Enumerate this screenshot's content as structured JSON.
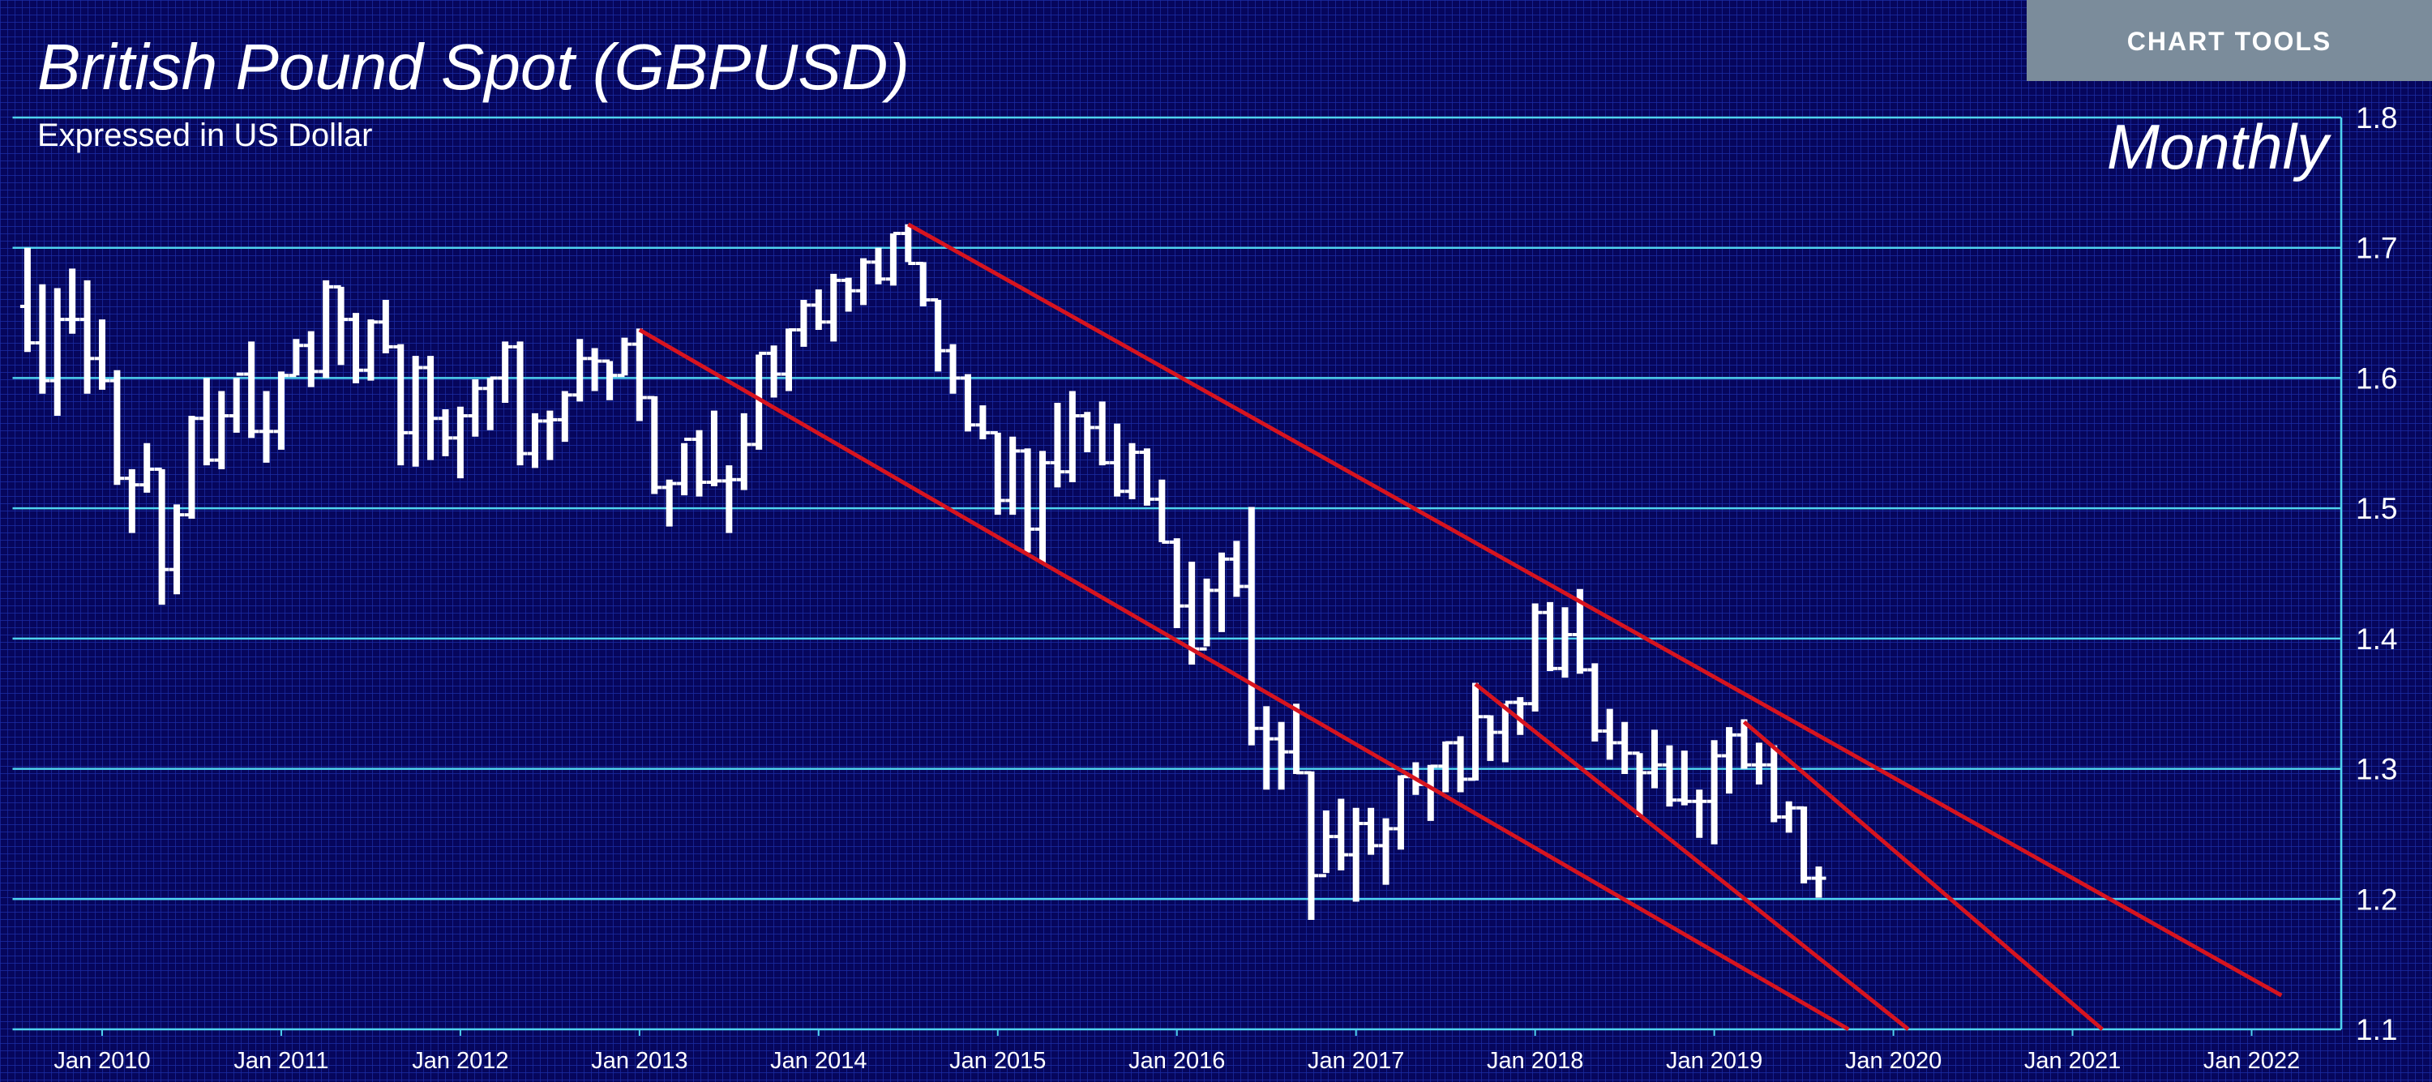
{
  "toolbar": {
    "button": "CHART TOOLS"
  },
  "chart_data": {
    "type": "ohlc",
    "title": "British Pound Spot (GBPUSD)",
    "subtitle": "Expressed in US Dollar",
    "annotation": "Monthly",
    "color": "#ffffff",
    "x": [
      "2009-08",
      "2009-09",
      "2009-10",
      "2009-11",
      "2009-12",
      "2010-01",
      "2010-02",
      "2010-03",
      "2010-04",
      "2010-05",
      "2010-06",
      "2010-07",
      "2010-08",
      "2010-09",
      "2010-10",
      "2010-11",
      "2010-12",
      "2011-01",
      "2011-02",
      "2011-03",
      "2011-04",
      "2011-05",
      "2011-06",
      "2011-07",
      "2011-08",
      "2011-09",
      "2011-10",
      "2011-11",
      "2011-12",
      "2012-01",
      "2012-02",
      "2012-03",
      "2012-04",
      "2012-05",
      "2012-06",
      "2012-07",
      "2012-08",
      "2012-09",
      "2012-10",
      "2012-11",
      "2012-12",
      "2013-01",
      "2013-02",
      "2013-03",
      "2013-04",
      "2013-05",
      "2013-06",
      "2013-07",
      "2013-08",
      "2013-09",
      "2013-10",
      "2013-11",
      "2013-12",
      "2014-01",
      "2014-02",
      "2014-03",
      "2014-04",
      "2014-05",
      "2014-06",
      "2014-07",
      "2014-08",
      "2014-09",
      "2014-10",
      "2014-11",
      "2014-12",
      "2015-01",
      "2015-02",
      "2015-03",
      "2015-04",
      "2015-05",
      "2015-06",
      "2015-07",
      "2015-08",
      "2015-09",
      "2015-10",
      "2015-11",
      "2015-12",
      "2016-01",
      "2016-02",
      "2016-03",
      "2016-04",
      "2016-05",
      "2016-06",
      "2016-07",
      "2016-08",
      "2016-09",
      "2016-10",
      "2016-11",
      "2016-12",
      "2017-01",
      "2017-02",
      "2017-03",
      "2017-04",
      "2017-05",
      "2017-06",
      "2017-07",
      "2017-08",
      "2017-09",
      "2017-10",
      "2017-11",
      "2017-12",
      "2018-01",
      "2018-02",
      "2018-03",
      "2018-04",
      "2018-05",
      "2018-06",
      "2018-07",
      "2018-08",
      "2018-09",
      "2018-10",
      "2018-11",
      "2018-12",
      "2019-01",
      "2019-02",
      "2019-03",
      "2019-04",
      "2019-05",
      "2019-06",
      "2019-07",
      "2019-08"
    ],
    "open": [
      1.655,
      1.627,
      1.598,
      1.645,
      1.645,
      1.615,
      1.598,
      1.523,
      1.518,
      1.53,
      1.453,
      1.495,
      1.569,
      1.537,
      1.571,
      1.603,
      1.559,
      1.559,
      1.602,
      1.625,
      1.605,
      1.67,
      1.645,
      1.606,
      1.643,
      1.624,
      1.558,
      1.608,
      1.569,
      1.554,
      1.571,
      1.592,
      1.6,
      1.624,
      1.542,
      1.567,
      1.568,
      1.587,
      1.615,
      1.613,
      1.602,
      1.626,
      1.585,
      1.516,
      1.519,
      1.553,
      1.52,
      1.521,
      1.522,
      1.549,
      1.619,
      1.603,
      1.637,
      1.656,
      1.643,
      1.675,
      1.667,
      1.689,
      1.676,
      1.711,
      1.688,
      1.66,
      1.621,
      1.6,
      1.564,
      1.558,
      1.506,
      1.544,
      1.484,
      1.535,
      1.528,
      1.571,
      1.562,
      1.535,
      1.513,
      1.543,
      1.507,
      1.474,
      1.425,
      1.392,
      1.437,
      1.461,
      1.44,
      1.331,
      1.323,
      1.313,
      1.297,
      1.218,
      1.248,
      1.234,
      1.258,
      1.241,
      1.254,
      1.294,
      1.288,
      1.302,
      1.32,
      1.292,
      1.34,
      1.328,
      1.351,
      1.35,
      1.42,
      1.377,
      1.403,
      1.376,
      1.329,
      1.32,
      1.312,
      1.297,
      1.303,
      1.276,
      1.275,
      1.275,
      1.31,
      1.326,
      1.303,
      1.303,
      1.263,
      1.27,
      1.216
    ],
    "high": [
      1.7,
      1.672,
      1.669,
      1.684,
      1.675,
      1.645,
      1.606,
      1.53,
      1.55,
      1.53,
      1.503,
      1.571,
      1.6,
      1.59,
      1.6,
      1.628,
      1.59,
      1.605,
      1.63,
      1.636,
      1.675,
      1.67,
      1.65,
      1.645,
      1.66,
      1.626,
      1.617,
      1.617,
      1.576,
      1.578,
      1.599,
      1.6,
      1.628,
      1.628,
      1.573,
      1.575,
      1.59,
      1.63,
      1.623,
      1.613,
      1.631,
      1.638,
      1.586,
      1.522,
      1.55,
      1.56,
      1.575,
      1.533,
      1.573,
      1.618,
      1.625,
      1.638,
      1.66,
      1.668,
      1.68,
      1.677,
      1.692,
      1.7,
      1.711,
      1.718,
      1.689,
      1.66,
      1.626,
      1.603,
      1.579,
      1.558,
      1.555,
      1.546,
      1.544,
      1.581,
      1.59,
      1.574,
      1.582,
      1.565,
      1.55,
      1.546,
      1.522,
      1.477,
      1.459,
      1.446,
      1.466,
      1.475,
      1.501,
      1.348,
      1.336,
      1.35,
      1.298,
      1.268,
      1.277,
      1.27,
      1.27,
      1.262,
      1.295,
      1.305,
      1.303,
      1.321,
      1.325,
      1.366,
      1.341,
      1.35,
      1.355,
      1.427,
      1.428,
      1.424,
      1.438,
      1.381,
      1.346,
      1.336,
      1.312,
      1.33,
      1.318,
      1.314,
      1.284,
      1.322,
      1.332,
      1.338,
      1.32,
      1.318,
      1.275,
      1.271,
      1.225
    ],
    "low": [
      1.62,
      1.588,
      1.571,
      1.634,
      1.588,
      1.591,
      1.518,
      1.481,
      1.512,
      1.426,
      1.434,
      1.492,
      1.533,
      1.53,
      1.558,
      1.554,
      1.535,
      1.545,
      1.602,
      1.593,
      1.6,
      1.61,
      1.596,
      1.598,
      1.619,
      1.533,
      1.532,
      1.537,
      1.54,
      1.523,
      1.555,
      1.56,
      1.581,
      1.533,
      1.531,
      1.537,
      1.551,
      1.582,
      1.59,
      1.583,
      1.602,
      1.567,
      1.511,
      1.486,
      1.51,
      1.509,
      1.517,
      1.481,
      1.514,
      1.545,
      1.585,
      1.59,
      1.624,
      1.637,
      1.628,
      1.651,
      1.656,
      1.672,
      1.671,
      1.689,
      1.655,
      1.605,
      1.588,
      1.559,
      1.553,
      1.495,
      1.495,
      1.466,
      1.458,
      1.516,
      1.52,
      1.543,
      1.533,
      1.509,
      1.507,
      1.502,
      1.474,
      1.408,
      1.38,
      1.394,
      1.405,
      1.432,
      1.318,
      1.284,
      1.284,
      1.296,
      1.184,
      1.22,
      1.222,
      1.198,
      1.234,
      1.211,
      1.238,
      1.28,
      1.26,
      1.282,
      1.282,
      1.291,
      1.306,
      1.305,
      1.326,
      1.344,
      1.375,
      1.37,
      1.373,
      1.321,
      1.307,
      1.296,
      1.263,
      1.285,
      1.271,
      1.272,
      1.247,
      1.242,
      1.281,
      1.3,
      1.288,
      1.259,
      1.251,
      1.212,
      1.201
    ],
    "close": [
      1.627,
      1.598,
      1.645,
      1.645,
      1.615,
      1.598,
      1.523,
      1.518,
      1.53,
      1.453,
      1.495,
      1.569,
      1.537,
      1.571,
      1.603,
      1.559,
      1.559,
      1.602,
      1.625,
      1.605,
      1.67,
      1.645,
      1.606,
      1.643,
      1.624,
      1.558,
      1.608,
      1.569,
      1.554,
      1.571,
      1.592,
      1.6,
      1.624,
      1.542,
      1.567,
      1.568,
      1.587,
      1.615,
      1.613,
      1.602,
      1.626,
      1.585,
      1.516,
      1.519,
      1.553,
      1.52,
      1.521,
      1.522,
      1.549,
      1.619,
      1.603,
      1.637,
      1.656,
      1.643,
      1.675,
      1.667,
      1.689,
      1.676,
      1.711,
      1.688,
      1.66,
      1.621,
      1.6,
      1.564,
      1.558,
      1.506,
      1.544,
      1.484,
      1.535,
      1.528,
      1.571,
      1.562,
      1.535,
      1.513,
      1.543,
      1.507,
      1.474,
      1.425,
      1.392,
      1.437,
      1.461,
      1.44,
      1.331,
      1.323,
      1.313,
      1.297,
      1.218,
      1.248,
      1.234,
      1.258,
      1.241,
      1.254,
      1.294,
      1.288,
      1.302,
      1.32,
      1.292,
      1.34,
      1.328,
      1.351,
      1.35,
      1.42,
      1.377,
      1.403,
      1.376,
      1.329,
      1.32,
      1.312,
      1.297,
      1.303,
      1.276,
      1.275,
      1.275,
      1.31,
      1.326,
      1.303,
      1.303,
      1.263,
      1.27,
      1.216,
      1.216
    ],
    "xlim": [
      "2009-07",
      "2022-07"
    ],
    "xticks": [
      {
        "value": "2010-01",
        "label": "Jan 2010"
      },
      {
        "value": "2011-01",
        "label": "Jan 2011"
      },
      {
        "value": "2012-01",
        "label": "Jan 2012"
      },
      {
        "value": "2013-01",
        "label": "Jan 2013"
      },
      {
        "value": "2014-01",
        "label": "Jan 2014"
      },
      {
        "value": "2015-01",
        "label": "Jan 2015"
      },
      {
        "value": "2016-01",
        "label": "Jan 2016"
      },
      {
        "value": "2017-01",
        "label": "Jan 2017"
      },
      {
        "value": "2018-01",
        "label": "Jan 2018"
      },
      {
        "value": "2019-01",
        "label": "Jan 2019"
      },
      {
        "value": "2020-01",
        "label": "Jan 2020"
      },
      {
        "value": "2021-01",
        "label": "Jan 2021"
      },
      {
        "value": "2022-01",
        "label": "Jan 2022"
      }
    ],
    "ylim": [
      1.1,
      1.8
    ],
    "yticks": [
      1.1,
      1.2,
      1.3,
      1.4,
      1.5,
      1.6,
      1.7,
      1.8
    ],
    "grid": true,
    "trendline_color": "#d7141f",
    "trendlines": [
      {
        "x": [
          "2014-07",
          "2022-03"
        ],
        "y": [
          1.718,
          1.126
        ]
      },
      {
        "x": [
          "2013-01",
          "2019-10"
        ],
        "y": [
          1.637,
          1.1
        ]
      },
      {
        "x": [
          "2017-09",
          "2020-02"
        ],
        "y": [
          1.365,
          1.1
        ]
      },
      {
        "x": [
          "2019-03",
          "2021-03"
        ],
        "y": [
          1.336,
          1.1
        ]
      }
    ]
  }
}
